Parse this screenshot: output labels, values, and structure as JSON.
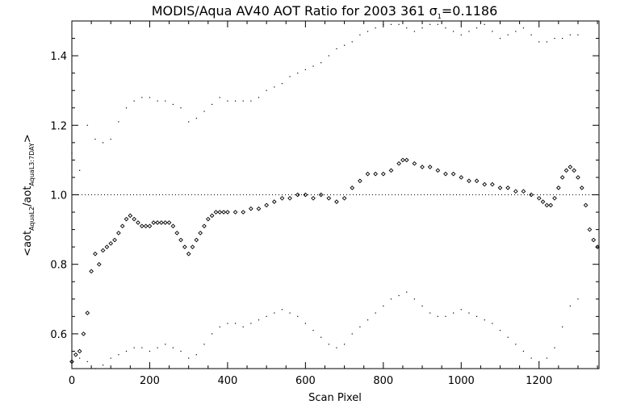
{
  "chart_data": {
    "type": "scatter",
    "title_prefix": "MODIS/Aqua AV40 AOT Ratio for 2003 361 ",
    "title_sigma_symbol": "σ",
    "title_sigma_sub": "1",
    "title_sigma_value": "=0.1186",
    "xlabel": "Scan Pixel",
    "ylabel_parts": {
      "open": "<aot",
      "sub1": "AquaL2",
      "mid": "/aot",
      "sub2": "AquaL3:7DAY",
      "close": ">"
    },
    "xlim": [
      0,
      1354
    ],
    "ylim": [
      0.5,
      1.5
    ],
    "x_ticks": [
      0,
      200,
      400,
      600,
      800,
      1000,
      1200
    ],
    "x_tick_labels": [
      "0",
      "200",
      "400",
      "600",
      "800",
      "1000",
      "1200"
    ],
    "y_ticks": [
      0.6,
      0.8,
      1.0,
      1.2,
      1.4
    ],
    "y_tick_labels": [
      "0.6",
      "0.8",
      "1.0",
      "1.2",
      "1.4"
    ],
    "reference_line_y": 1.0,
    "grid": false,
    "legend": "none",
    "color": "#000000",
    "series": [
      {
        "marker": "diamond",
        "x": [
          0,
          10,
          20,
          30,
          40,
          50,
          60,
          70,
          80,
          90,
          100,
          110,
          120,
          130,
          140,
          150,
          160,
          170,
          180,
          190,
          200,
          210,
          220,
          230,
          240,
          250,
          260,
          270,
          280,
          290,
          300,
          310,
          320,
          330,
          340,
          350,
          360,
          370,
          380,
          390,
          400,
          420,
          440,
          460,
          480,
          500,
          520,
          540,
          560,
          580,
          600,
          620,
          640,
          660,
          680,
          700,
          720,
          740,
          760,
          780,
          800,
          820,
          840,
          850,
          860,
          880,
          900,
          920,
          940,
          960,
          980,
          1000,
          1020,
          1040,
          1060,
          1080,
          1100,
          1120,
          1140,
          1160,
          1180,
          1200,
          1210,
          1220,
          1230,
          1240,
          1250,
          1260,
          1270,
          1280,
          1290,
          1300,
          1310,
          1320,
          1330,
          1340,
          1350
        ],
        "y": [
          0.52,
          0.54,
          0.55,
          0.6,
          0.66,
          0.78,
          0.83,
          0.8,
          0.84,
          0.85,
          0.86,
          0.87,
          0.89,
          0.91,
          0.93,
          0.94,
          0.93,
          0.92,
          0.91,
          0.91,
          0.91,
          0.92,
          0.92,
          0.92,
          0.92,
          0.92,
          0.91,
          0.89,
          0.87,
          0.85,
          0.83,
          0.85,
          0.87,
          0.89,
          0.91,
          0.93,
          0.94,
          0.95,
          0.95,
          0.95,
          0.95,
          0.95,
          0.95,
          0.96,
          0.96,
          0.97,
          0.98,
          0.99,
          0.99,
          1.0,
          1.0,
          0.99,
          1.0,
          0.99,
          0.98,
          0.99,
          1.02,
          1.04,
          1.06,
          1.06,
          1.06,
          1.07,
          1.09,
          1.1,
          1.1,
          1.09,
          1.08,
          1.08,
          1.07,
          1.06,
          1.06,
          1.05,
          1.04,
          1.04,
          1.03,
          1.03,
          1.02,
          1.02,
          1.01,
          1.01,
          1.0,
          0.99,
          0.98,
          0.97,
          0.97,
          0.99,
          1.02,
          1.05,
          1.07,
          1.08,
          1.07,
          1.05,
          1.02,
          0.97,
          0.9,
          0.87,
          0.85
        ]
      },
      {
        "marker": "dot",
        "x": [
          0,
          20,
          40,
          60,
          80,
          100,
          120,
          140,
          160,
          180,
          200,
          220,
          240,
          260,
          280,
          300,
          320,
          340,
          360,
          380,
          400,
          420,
          440,
          460,
          480,
          500,
          520,
          540,
          560,
          580,
          600,
          620,
          640,
          660,
          680,
          700,
          720,
          740,
          760,
          780,
          800,
          820,
          840,
          860,
          880,
          900,
          920,
          940,
          960,
          980,
          1000,
          1020,
          1040,
          1060,
          1080,
          1100,
          1120,
          1140,
          1160,
          1180,
          1200,
          1220,
          1240,
          1260,
          1280,
          1300
        ],
        "y": [
          1.12,
          1.07,
          1.2,
          1.16,
          1.15,
          1.16,
          1.21,
          1.25,
          1.27,
          1.28,
          1.28,
          1.27,
          1.27,
          1.26,
          1.25,
          1.21,
          1.22,
          1.24,
          1.26,
          1.28,
          1.27,
          1.27,
          1.27,
          1.27,
          1.28,
          1.3,
          1.31,
          1.32,
          1.34,
          1.35,
          1.36,
          1.37,
          1.38,
          1.4,
          1.42,
          1.43,
          1.44,
          1.46,
          1.47,
          1.48,
          1.49,
          1.49,
          1.49,
          1.48,
          1.47,
          1.48,
          1.49,
          1.49,
          1.48,
          1.47,
          1.46,
          1.47,
          1.48,
          1.49,
          1.47,
          1.45,
          1.46,
          1.47,
          1.48,
          1.46,
          1.44,
          1.44,
          1.45,
          1.45,
          1.46,
          1.46
        ]
      },
      {
        "marker": "dot",
        "x": [
          0,
          20,
          40,
          60,
          80,
          100,
          120,
          140,
          160,
          180,
          200,
          220,
          240,
          260,
          280,
          300,
          320,
          340,
          360,
          380,
          400,
          420,
          440,
          460,
          480,
          500,
          520,
          540,
          560,
          580,
          600,
          620,
          640,
          660,
          680,
          700,
          720,
          740,
          760,
          780,
          800,
          820,
          840,
          860,
          880,
          900,
          920,
          940,
          960,
          980,
          1000,
          1020,
          1040,
          1060,
          1080,
          1100,
          1120,
          1140,
          1160,
          1180,
          1200,
          1220,
          1240,
          1260,
          1280,
          1300
        ],
        "y": [
          0.55,
          0.53,
          0.52,
          0.5,
          0.51,
          0.53,
          0.54,
          0.55,
          0.56,
          0.56,
          0.55,
          0.56,
          0.57,
          0.56,
          0.55,
          0.53,
          0.54,
          0.57,
          0.6,
          0.62,
          0.63,
          0.63,
          0.62,
          0.63,
          0.64,
          0.65,
          0.66,
          0.67,
          0.66,
          0.65,
          0.63,
          0.61,
          0.59,
          0.57,
          0.56,
          0.57,
          0.6,
          0.62,
          0.64,
          0.66,
          0.68,
          0.7,
          0.71,
          0.72,
          0.7,
          0.68,
          0.66,
          0.65,
          0.65,
          0.66,
          0.67,
          0.66,
          0.65,
          0.64,
          0.63,
          0.61,
          0.59,
          0.57,
          0.55,
          0.53,
          0.52,
          0.53,
          0.56,
          0.62,
          0.68,
          0.7
        ]
      }
    ]
  }
}
